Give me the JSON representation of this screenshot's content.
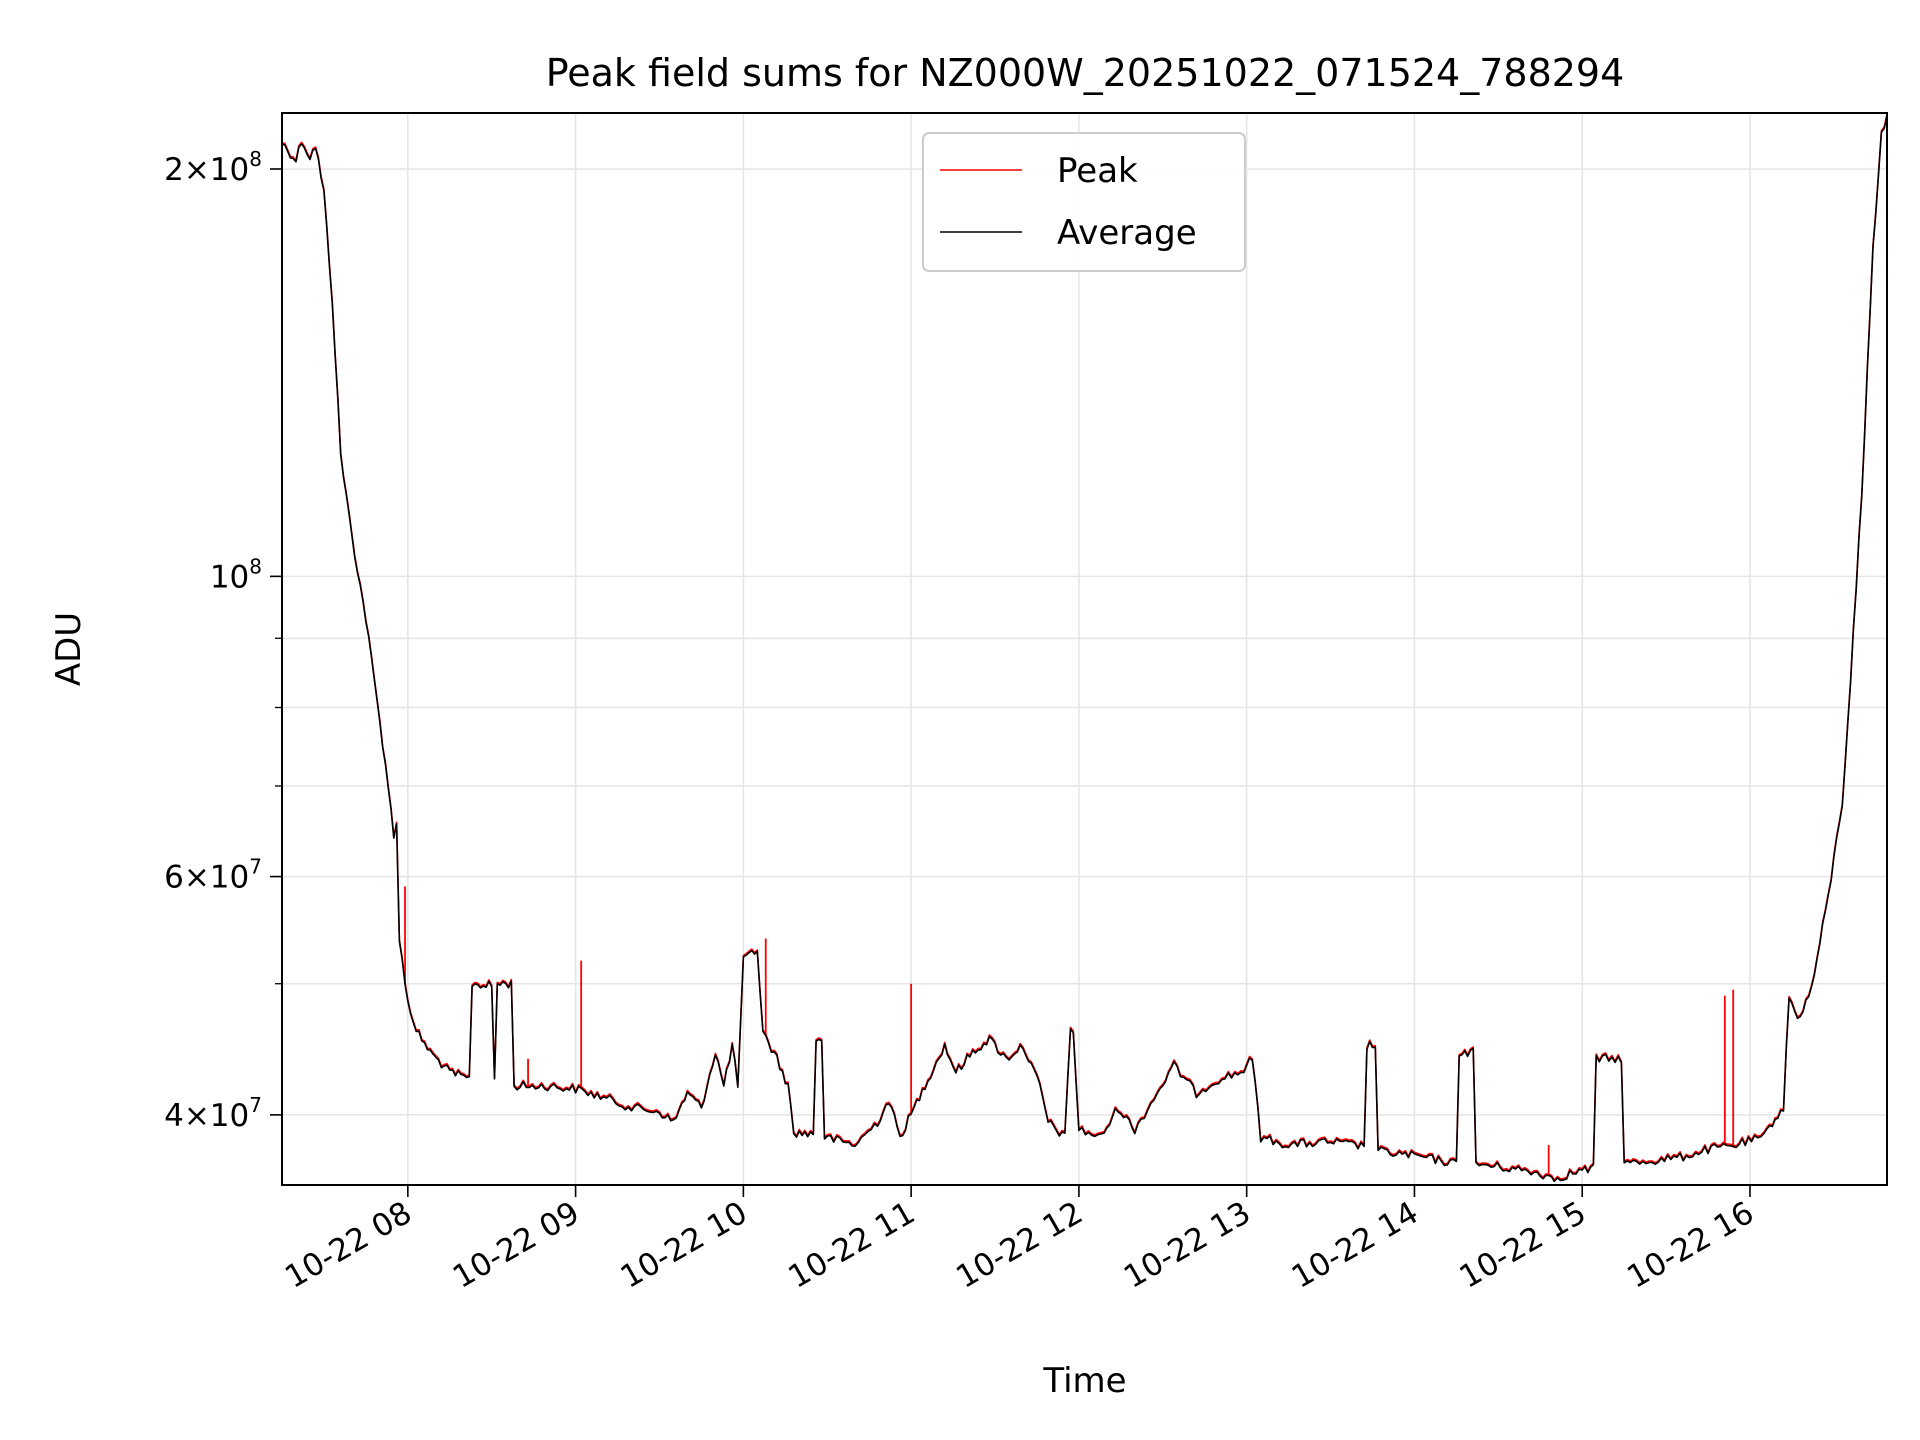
{
  "chart_data": {
    "type": "line",
    "title": "Peak field sums for NZ000W_20251022_071524_788294",
    "xlabel": "Time",
    "ylabel": "ADU",
    "y_scale": "log",
    "ylim": [
      35500000,
      220000000
    ],
    "xlim": [
      "2025-10-22 07:15",
      "2025-10-22 16:49"
    ],
    "grid": true,
    "legend_placement": "upper-center",
    "x_ticks": [
      {
        "t": "2025-10-22 08:00",
        "label": "10-22 08"
      },
      {
        "t": "2025-10-22 09:00",
        "label": "10-22 09"
      },
      {
        "t": "2025-10-22 10:00",
        "label": "10-22 10"
      },
      {
        "t": "2025-10-22 11:00",
        "label": "10-22 11"
      },
      {
        "t": "2025-10-22 12:00",
        "label": "10-22 12"
      },
      {
        "t": "2025-10-22 13:00",
        "label": "10-22 13"
      },
      {
        "t": "2025-10-22 14:00",
        "label": "10-22 14"
      },
      {
        "t": "2025-10-22 15:00",
        "label": "10-22 15"
      },
      {
        "t": "2025-10-22 16:00",
        "label": "10-22 16"
      }
    ],
    "y_ticks_major": [
      {
        "v": 40000000,
        "mant": "4",
        "exp": "7"
      },
      {
        "v": 60000000,
        "mant": "6",
        "exp": "7"
      },
      {
        "v": 100000000,
        "mant": "",
        "exp": "8"
      },
      {
        "v": 200000000,
        "mant": "2",
        "exp": "8"
      }
    ],
    "y_ticks_minor": [
      50000000,
      70000000,
      80000000,
      90000000
    ],
    "series": [
      {
        "name": "Peak",
        "color": "#ff0000",
        "spikes": [
          {
            "t": "2025-10-22 07:59",
            "v": 59000000
          },
          {
            "t": "2025-10-22 08:43",
            "v": 44000000
          },
          {
            "t": "2025-10-22 09:02",
            "v": 52000000
          },
          {
            "t": "2025-10-22 10:08",
            "v": 54000000
          },
          {
            "t": "2025-10-22 11:00",
            "v": 50000000
          },
          {
            "t": "2025-10-22 14:48",
            "v": 38000000
          },
          {
            "t": "2025-10-22 15:51",
            "v": 49000000
          },
          {
            "t": "2025-10-22 15:54",
            "v": 49500000
          }
        ]
      },
      {
        "name": "Average",
        "color": "#000000",
        "points": [
          [
            "2025-10-22 07:15",
            209000000
          ],
          [
            "2025-10-22 07:20",
            203000000
          ],
          [
            "2025-10-22 07:22",
            210000000
          ],
          [
            "2025-10-22 07:25",
            204000000
          ],
          [
            "2025-10-22 07:27",
            208000000
          ],
          [
            "2025-10-22 07:30",
            192000000
          ],
          [
            "2025-10-22 07:33",
            160000000
          ],
          [
            "2025-10-22 07:36",
            123000000
          ],
          [
            "2025-10-22 07:40",
            107000000
          ],
          [
            "2025-10-22 07:45",
            93000000
          ],
          [
            "2025-10-22 07:50",
            78000000
          ],
          [
            "2025-10-22 07:53",
            70000000
          ],
          [
            "2025-10-22 07:55",
            64000000
          ],
          [
            "2025-10-22 07:56",
            66000000
          ],
          [
            "2025-10-22 07:57",
            54000000
          ],
          [
            "2025-10-22 07:59",
            50000000
          ],
          [
            "2025-10-22 08:02",
            46500000
          ],
          [
            "2025-10-22 08:08",
            44500000
          ],
          [
            "2025-10-22 08:15",
            43000000
          ],
          [
            "2025-10-22 08:22",
            42500000
          ],
          [
            "2025-10-22 08:23",
            50000000
          ],
          [
            "2025-10-22 08:30",
            49800000
          ],
          [
            "2025-10-22 08:31",
            42500000
          ],
          [
            "2025-10-22 08:32",
            50000000
          ],
          [
            "2025-10-22 08:37",
            50000000
          ],
          [
            "2025-10-22 08:38",
            42000000
          ],
          [
            "2025-10-22 08:50",
            42000000
          ],
          [
            "2025-10-22 09:00",
            41800000
          ],
          [
            "2025-10-22 09:10",
            41200000
          ],
          [
            "2025-10-22 09:20",
            40500000
          ],
          [
            "2025-10-22 09:30",
            40200000
          ],
          [
            "2025-10-22 09:35",
            39500000
          ],
          [
            "2025-10-22 09:40",
            41500000
          ],
          [
            "2025-10-22 09:45",
            40500000
          ],
          [
            "2025-10-22 09:50",
            44500000
          ],
          [
            "2025-10-22 09:53",
            42000000
          ],
          [
            "2025-10-22 09:56",
            45000000
          ],
          [
            "2025-10-22 09:58",
            42000000
          ],
          [
            "2025-10-22 10:00",
            52000000
          ],
          [
            "2025-10-22 10:05",
            53000000
          ],
          [
            "2025-10-22 10:07",
            46000000
          ],
          [
            "2025-10-22 10:12",
            44000000
          ],
          [
            "2025-10-22 10:16",
            42000000
          ],
          [
            "2025-10-22 10:18",
            38800000
          ],
          [
            "2025-10-22 10:25",
            38700000
          ],
          [
            "2025-10-22 10:26",
            45500000
          ],
          [
            "2025-10-22 10:28",
            45500000
          ],
          [
            "2025-10-22 10:29",
            38500000
          ],
          [
            "2025-10-22 10:40",
            38000000
          ],
          [
            "2025-10-22 10:48",
            39500000
          ],
          [
            "2025-10-22 10:52",
            41000000
          ],
          [
            "2025-10-22 10:56",
            38500000
          ],
          [
            "2025-10-22 11:00",
            40000000
          ],
          [
            "2025-10-22 11:06",
            42500000
          ],
          [
            "2025-10-22 11:12",
            45000000
          ],
          [
            "2025-10-22 11:16",
            43000000
          ],
          [
            "2025-10-22 11:22",
            44500000
          ],
          [
            "2025-10-22 11:28",
            45500000
          ],
          [
            "2025-10-22 11:34",
            44000000
          ],
          [
            "2025-10-22 11:40",
            45000000
          ],
          [
            "2025-10-22 11:46",
            42000000
          ],
          [
            "2025-10-22 11:49",
            39500000
          ],
          [
            "2025-10-22 11:55",
            38500000
          ],
          [
            "2025-10-22 11:57",
            46500000
          ],
          [
            "2025-10-22 11:58",
            46000000
          ],
          [
            "2025-10-22 12:00",
            39000000
          ],
          [
            "2025-10-22 12:08",
            38500000
          ],
          [
            "2025-10-22 12:14",
            40500000
          ],
          [
            "2025-10-22 12:20",
            39000000
          ],
          [
            "2025-10-22 12:28",
            41500000
          ],
          [
            "2025-10-22 12:34",
            43500000
          ],
          [
            "2025-10-22 12:42",
            41500000
          ],
          [
            "2025-10-22 12:50",
            42500000
          ],
          [
            "2025-10-22 12:58",
            43000000
          ],
          [
            "2025-10-22 13:02",
            44000000
          ],
          [
            "2025-10-22 13:05",
            38500000
          ],
          [
            "2025-10-22 13:15",
            38000000
          ],
          [
            "2025-10-22 13:30",
            38200000
          ],
          [
            "2025-10-22 13:42",
            37900000
          ],
          [
            "2025-10-22 13:43",
            45000000
          ],
          [
            "2025-10-22 13:46",
            45000000
          ],
          [
            "2025-10-22 13:47",
            37600000
          ],
          [
            "2025-10-22 14:00",
            37300000
          ],
          [
            "2025-10-22 14:15",
            36800000
          ],
          [
            "2025-10-22 14:16",
            44500000
          ],
          [
            "2025-10-22 14:21",
            44500000
          ],
          [
            "2025-10-22 14:22",
            36800000
          ],
          [
            "2025-10-22 14:35",
            36500000
          ],
          [
            "2025-10-22 14:45",
            36200000
          ],
          [
            "2025-10-22 14:50",
            35900000
          ],
          [
            "2025-10-22 15:00",
            36400000
          ],
          [
            "2025-10-22 15:04",
            36500000
          ],
          [
            "2025-10-22 15:05",
            44000000
          ],
          [
            "2025-10-22 15:14",
            44000000
          ],
          [
            "2025-10-22 15:15",
            36800000
          ],
          [
            "2025-10-22 15:25",
            37000000
          ],
          [
            "2025-10-22 15:35",
            37200000
          ],
          [
            "2025-10-22 15:45",
            37700000
          ],
          [
            "2025-10-22 15:55",
            38000000
          ],
          [
            "2025-10-22 16:05",
            38500000
          ],
          [
            "2025-10-22 16:08",
            39500000
          ],
          [
            "2025-10-22 16:12",
            40500000
          ],
          [
            "2025-10-22 16:14",
            49000000
          ],
          [
            "2025-10-22 16:17",
            47000000
          ],
          [
            "2025-10-22 16:22",
            49500000
          ],
          [
            "2025-10-22 16:28",
            58000000
          ],
          [
            "2025-10-22 16:33",
            68000000
          ],
          [
            "2025-10-22 16:36",
            84000000
          ],
          [
            "2025-10-22 16:40",
            115000000
          ],
          [
            "2025-10-22 16:44",
            175000000
          ],
          [
            "2025-10-22 16:47",
            212000000
          ],
          [
            "2025-10-22 16:49",
            219000000
          ]
        ]
      }
    ]
  }
}
